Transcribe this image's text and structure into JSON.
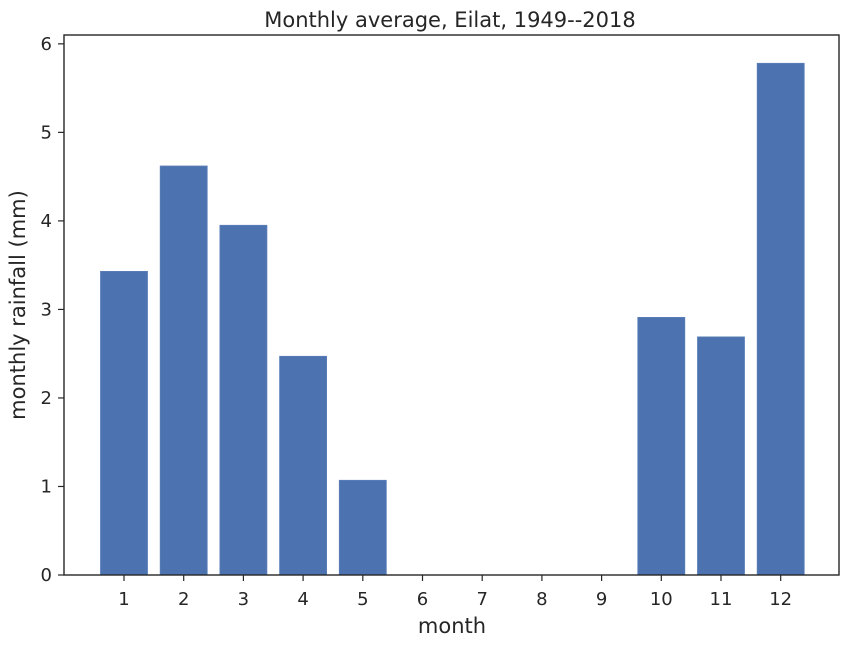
{
  "chart_data": {
    "type": "bar",
    "title": "Monthly average, Eilat, 1949--2018",
    "xlabel": "month",
    "ylabel": "monthly rainfall (mm)",
    "categories": [
      "1",
      "2",
      "3",
      "4",
      "5",
      "6",
      "7",
      "8",
      "9",
      "10",
      "11",
      "12"
    ],
    "values": [
      3.43,
      4.62,
      3.95,
      2.47,
      1.07,
      0,
      0,
      0,
      0,
      2.91,
      2.69,
      5.78
    ],
    "ylim": [
      0,
      6.1
    ],
    "yticks": [
      "0",
      "1",
      "2",
      "3",
      "4",
      "5",
      "6"
    ],
    "bar_color": "#4c72b0",
    "grid": false,
    "legend": false
  }
}
